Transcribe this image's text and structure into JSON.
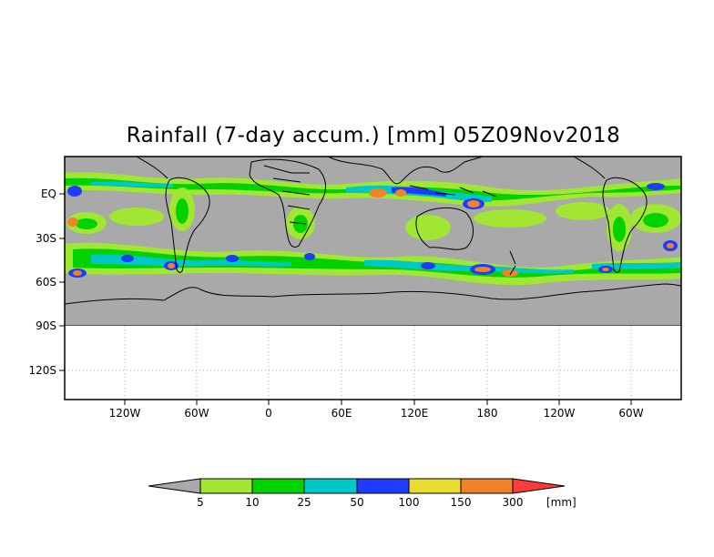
{
  "title": "Rainfall (7-day accum.) [mm] 05Z09Nov2018",
  "lon_ticks": [
    "120W",
    "60W",
    "0",
    "60E",
    "120E",
    "180",
    "120W",
    "60W"
  ],
  "lat_ticks": [
    "EQ",
    "30S",
    "60S",
    "90S",
    "120S"
  ],
  "colorbar": {
    "unit": "[mm]",
    "levels": [
      "5",
      "10",
      "25",
      "50",
      "100",
      "150",
      "300"
    ],
    "colors": {
      "below": "#a9a9a9",
      "5-10": "#a0e632",
      "10-25": "#00d200",
      "25-50": "#00c8c8",
      "50-100": "#1e3cff",
      "100-150": "#e6dc32",
      "150-300": "#f08228",
      "above": "#fa3c3c"
    }
  },
  "map": {
    "background": "#a9a9a9",
    "land_outline": "#000000",
    "grid_color": "#a9a9a9"
  }
}
